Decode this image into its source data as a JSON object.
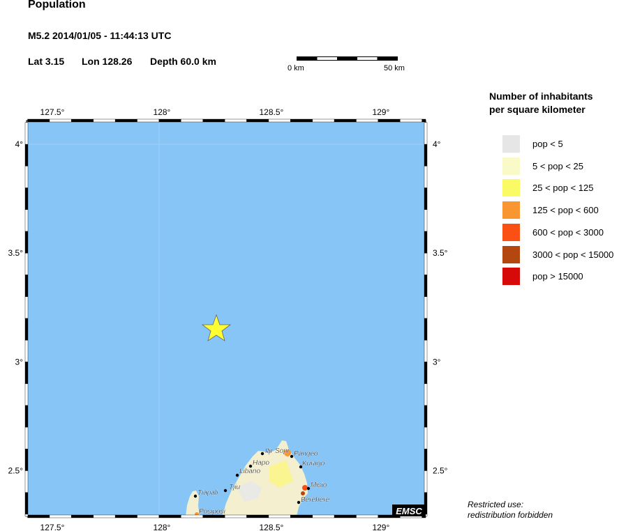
{
  "header": {
    "title": "Population",
    "event": "M5.2  2014/01/05 - 11:44:13 UTC",
    "lat": "Lat  3.15",
    "lon": "Lon 128.26",
    "depth": "Depth  60.0 km"
  },
  "scale_bar": {
    "start": "0 km",
    "end": "50 km"
  },
  "map": {
    "lon_ticks": [
      {
        "value": 127.5,
        "label": "127.5°"
      },
      {
        "value": 128,
        "label": "128°"
      },
      {
        "value": 128.5,
        "label": "128.5°"
      },
      {
        "value": 129,
        "label": "129°"
      }
    ],
    "lat_ticks": [
      {
        "value": 4,
        "label": "4°"
      },
      {
        "value": 3.5,
        "label": "3.5°"
      },
      {
        "value": 3,
        "label": "3°"
      },
      {
        "value": 2.5,
        "label": "2.5°"
      }
    ],
    "epicenter": {
      "lat": 3.15,
      "lon": 128.26,
      "icon": "star-icon",
      "color": "#ffff33"
    },
    "sea_color": "#87c5f7",
    "towns": [
      "Itji",
      "Sopi",
      "Pangeo",
      "Hapo",
      "Kurago",
      "Libano",
      "Misio",
      "Tiapali",
      "Tjiu",
      "Berebere",
      "Posiposi"
    ],
    "badge": "EMSC"
  },
  "legend": {
    "title1": "Number of inhabitants",
    "title2": "per square kilometer",
    "items": [
      {
        "label": "pop < 5",
        "color": "#e6e6e6"
      },
      {
        "label": "5 < pop < 25",
        "color": "#fafac8"
      },
      {
        "label": "25 < pop < 125",
        "color": "#fafa64"
      },
      {
        "label": "125 < pop < 600",
        "color": "#fa9632"
      },
      {
        "label": "600 < pop < 3000",
        "color": "#fa5014"
      },
      {
        "label": "3000 < pop < 15000",
        "color": "#b4460f"
      },
      {
        "label": "pop > 15000",
        "color": "#d70a0a"
      }
    ]
  },
  "footer": {
    "line1": "Restricted use:",
    "line2": "redistribution forbidden"
  }
}
